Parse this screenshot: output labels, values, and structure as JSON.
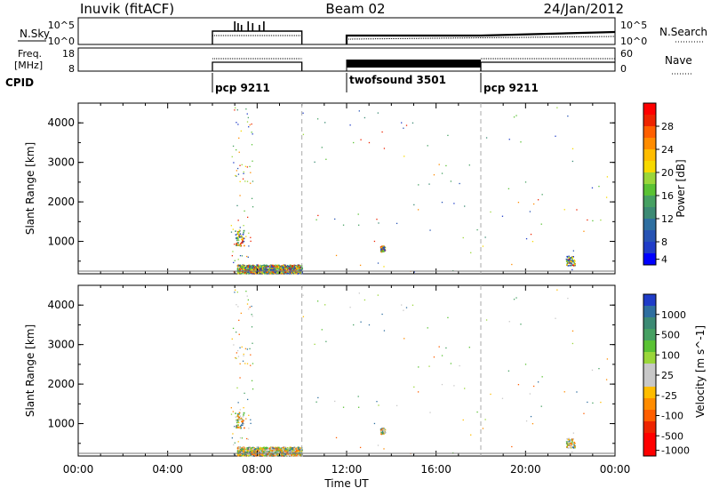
{
  "header": {
    "station": "Inuvik (fitACF)",
    "beam": "Beam 02",
    "date": "24/Jan/2012"
  },
  "panels": {
    "sky": {
      "left_label": "N.Sky",
      "right_label": "N.Search",
      "left_ticks": [
        "10^5",
        "10^0"
      ],
      "right_ticks": [
        "10^5",
        "10^0"
      ]
    },
    "freq": {
      "left_label": "Freq.",
      "left_unit": "[MHz]",
      "right_label": "Nave",
      "left_ticks": [
        "18",
        "8"
      ],
      "right_ticks": [
        "60",
        "0"
      ]
    },
    "cpid": {
      "label": "CPID",
      "segments": [
        "pcp 9211",
        "twofsound 3501",
        "pcp 9211"
      ]
    }
  },
  "axes": {
    "ylabel": "Slant Range [km]",
    "yticks": [
      "4000",
      "3000",
      "2000",
      "1000"
    ],
    "xlabel": "Time UT",
    "xticks": [
      "00:00",
      "04:00",
      "08:00",
      "12:00",
      "16:00",
      "20:00",
      "00:00"
    ]
  },
  "colorbars": {
    "power": {
      "label": "Power [dB]",
      "ticks": [
        "28",
        "24",
        "20",
        "16",
        "12",
        "8",
        "4"
      ],
      "colors": [
        "#ff0000",
        "#ee2400",
        "#ff5f00",
        "#ff8c00",
        "#ffbd00",
        "#f7d900",
        "#9ad63a",
        "#5ac234",
        "#46a062",
        "#3c8a74",
        "#2f6fa0",
        "#2753b4",
        "#1f3cc8",
        "#0000ff"
      ]
    },
    "velocity": {
      "label": "Velocity [m s^-1]",
      "ticks": [
        "1000",
        "500",
        "100",
        "25",
        "-25",
        "-100",
        "-500",
        "-1000"
      ],
      "colors": [
        "#1f3cc8",
        "#2f6fa0",
        "#3c8a74",
        "#46a062",
        "#5ac234",
        "#9ad63a",
        "#c8c8c8",
        "#c8c8c8",
        "#ffbd00",
        "#ff8c00",
        "#ff5f00",
        "#ee2400",
        "#ff0000",
        "#ff0000"
      ]
    }
  },
  "chart_data": {
    "type": "heatmap",
    "title": "Inuvik (fitACF) Beam 02 24/Jan/2012",
    "x_unit": "hours UT",
    "xlim": [
      0,
      24
    ],
    "ylim": [
      180,
      4500
    ],
    "xlabel": "Time UT",
    "ylabel": "Slant Range [km]",
    "cpid_segments": [
      {
        "label": "pcp 9211",
        "start": 6.0,
        "end": 10.0
      },
      {
        "label": "twofsound 3501",
        "start": 12.0,
        "end": 18.0
      },
      {
        "label": "pcp 9211",
        "start": 18.0,
        "end": 24.0
      }
    ],
    "data_gap": [
      0,
      6
    ],
    "power_scatter_regions": [
      {
        "t": [
          7.1,
          10.0
        ],
        "r": [
          200,
          420
        ],
        "power_db": [
          4,
          28
        ]
      },
      {
        "t": [
          7.0,
          7.4
        ],
        "r": [
          900,
          1300
        ],
        "power_db": [
          4,
          10
        ]
      },
      {
        "t": [
          13.5,
          13.7
        ],
        "r": [
          750,
          900
        ],
        "power_db": [
          4,
          8
        ]
      },
      {
        "t": [
          21.8,
          22.2
        ],
        "r": [
          400,
          650
        ],
        "power_db": [
          4,
          8
        ]
      }
    ],
    "velocity_scatter_regions": [
      {
        "t": [
          7.1,
          10.0
        ],
        "r": [
          200,
          420
        ],
        "velocity": [
          -500,
          100
        ]
      },
      {
        "t": [
          7.0,
          7.4
        ],
        "r": [
          900,
          1300
        ],
        "velocity": [
          25,
          500
        ]
      },
      {
        "t": [
          13.5,
          13.7
        ],
        "r": [
          750,
          900
        ],
        "velocity": [
          25,
          500
        ]
      },
      {
        "t": [
          21.8,
          22.2
        ],
        "r": [
          400,
          650
        ],
        "velocity": [
          -500,
          -100
        ]
      }
    ]
  }
}
